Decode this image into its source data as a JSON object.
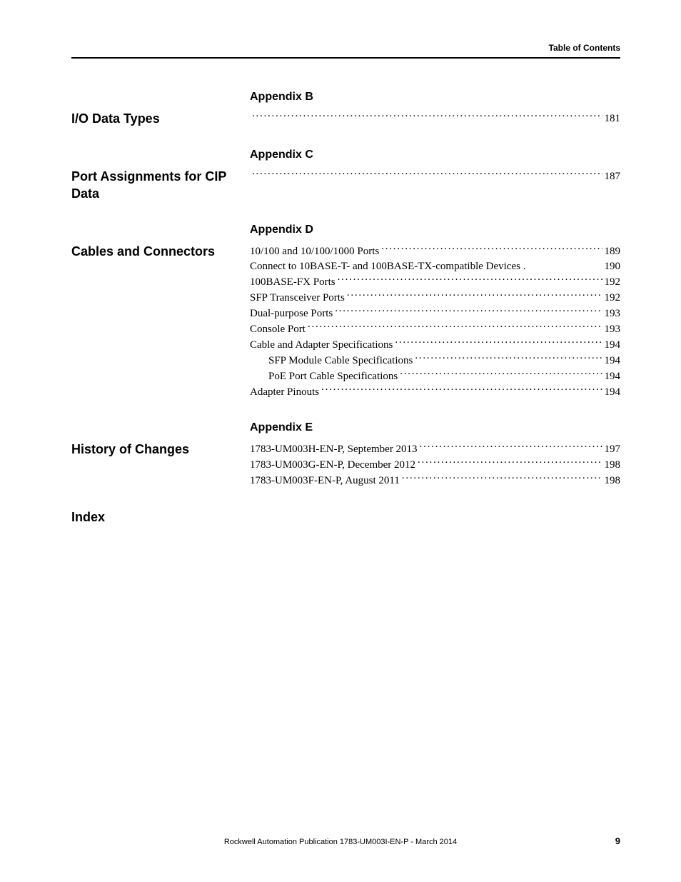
{
  "header": {
    "right_text": "Table of Contents"
  },
  "sections": {
    "appendix_b": {
      "heading": "Appendix B",
      "left_title": "I/O Data Types",
      "entry_page": "181"
    },
    "appendix_c": {
      "heading": "Appendix C",
      "left_title": "Port Assignments for CIP Data",
      "entry_page": "187"
    },
    "appendix_d": {
      "heading": "Appendix D",
      "left_title": "Cables and Connectors",
      "entries": [
        {
          "label": "10/100 and 10/100/1000 Ports",
          "page": "189",
          "indent": 0
        },
        {
          "label": "Connect to 10BASE-T- and 100BASE-TX-compatible Devices .",
          "page": "190",
          "indent": 1,
          "nodots": true
        },
        {
          "label": "100BASE-FX Ports",
          "page": "192",
          "indent": 0
        },
        {
          "label": "SFP Transceiver Ports",
          "page": "192",
          "indent": 0
        },
        {
          "label": "Dual-purpose Ports",
          "page": "193",
          "indent": 0
        },
        {
          "label": "Console Port",
          "page": "193",
          "indent": 0
        },
        {
          "label": "Cable and Adapter Specifications",
          "page": "194",
          "indent": 0
        },
        {
          "label": "SFP Module Cable Specifications",
          "page": "194",
          "indent": 1
        },
        {
          "label": "PoE Port Cable Specifications",
          "page": "194",
          "indent": 1
        },
        {
          "label": "Adapter Pinouts",
          "page": "194",
          "indent": 0
        }
      ]
    },
    "appendix_e": {
      "heading": "Appendix E",
      "left_title": "History of Changes",
      "entries": [
        {
          "label": "1783-UM003H-EN-P, September 2013",
          "page": "197",
          "indent": 0
        },
        {
          "label": "1783-UM003G-EN-P, December 2012",
          "page": "198",
          "indent": 0
        },
        {
          "label": "1783-UM003F-EN-P, August 2011",
          "page": "198",
          "indent": 0
        }
      ]
    },
    "index": {
      "left_title": "Index"
    }
  },
  "footer": {
    "text": "Rockwell Automation Publication 1783-UM003I-EN-P - March 2014",
    "page_num": "9"
  }
}
